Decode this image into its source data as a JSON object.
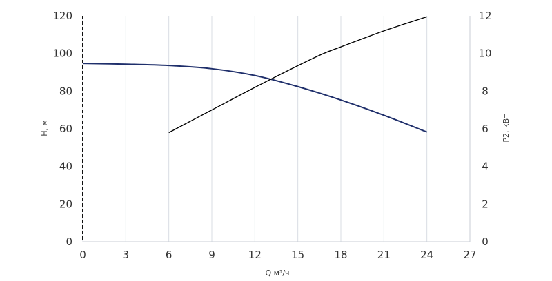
{
  "chart_data": {
    "type": "line",
    "xlabel": "Q м³/ч",
    "ylabel_left": "H, м",
    "ylabel_right": "P2, кВт",
    "xlim": [
      0,
      27
    ],
    "ylim_left": [
      0,
      120
    ],
    "ylim_right": [
      0,
      12
    ],
    "x_ticks": [
      "0",
      "3",
      "6",
      "9",
      "12",
      "15",
      "18",
      "21",
      "24",
      "27"
    ],
    "y_left_ticks": [
      "0",
      "20",
      "40",
      "60",
      "80",
      "100",
      "120"
    ],
    "y_right_ticks": [
      "0",
      "2",
      "4",
      "6",
      "8",
      "10",
      "12"
    ],
    "grid": "vertical",
    "series": [
      {
        "axis": "left",
        "color": "#1f2f6b",
        "x": [
          0,
          3,
          6,
          9,
          12,
          15,
          18,
          21,
          24
        ],
        "values": [
          94.7,
          94.3,
          93.6,
          91.9,
          88.3,
          82.4,
          75.3,
          67.2,
          58.3
        ]
      },
      {
        "axis": "right",
        "color": "#000000",
        "x": [
          6,
          9,
          12,
          15,
          16.8,
          18,
          21,
          24
        ],
        "values": [
          5.8,
          7.0,
          8.2,
          9.35,
          10.0,
          10.35,
          11.2,
          11.95
        ]
      }
    ]
  }
}
